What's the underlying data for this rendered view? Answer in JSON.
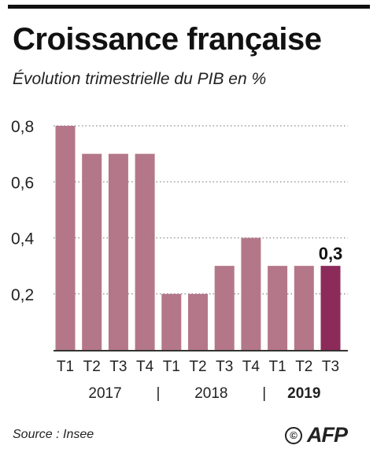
{
  "header": {
    "title": "Croissance française",
    "subtitle": "Évolution trimestrielle du PIB en %"
  },
  "footer": {
    "source": "Source : Insee",
    "copyright_symbol": "©",
    "logo_text": "AFP"
  },
  "colors": {
    "bar": "#b47789",
    "highlight_bar": "#8c2a5a",
    "grid": "#888888",
    "axis": "#333333"
  },
  "chart_data": {
    "type": "bar",
    "title": "Croissance française",
    "subtitle": "Évolution trimestrielle du PIB en %",
    "categories": [
      "T1",
      "T2",
      "T3",
      "T4",
      "T1",
      "T2",
      "T3",
      "T4",
      "T1",
      "T2",
      "T3"
    ],
    "values": [
      0.8,
      0.7,
      0.7,
      0.7,
      0.2,
      0.2,
      0.3,
      0.4,
      0.3,
      0.3,
      0.3
    ],
    "years": [
      {
        "label": "2017",
        "start": 0,
        "end": 3,
        "bold": false
      },
      {
        "label": "2018",
        "start": 4,
        "end": 7,
        "bold": false
      },
      {
        "label": "2019",
        "start": 8,
        "end": 10,
        "bold": true
      }
    ],
    "year_separator": "|",
    "highlight_index": 10,
    "data_labels": [
      {
        "index": 10,
        "text": "0,3"
      }
    ],
    "yticks": [
      {
        "value": 0.2,
        "label": "0,2"
      },
      {
        "value": 0.4,
        "label": "0,4"
      },
      {
        "value": 0.6,
        "label": "0,6"
      },
      {
        "value": 0.8,
        "label": "0,8"
      }
    ],
    "ylim": [
      0,
      0.8
    ],
    "grid": true,
    "grid_style": "dotted"
  }
}
